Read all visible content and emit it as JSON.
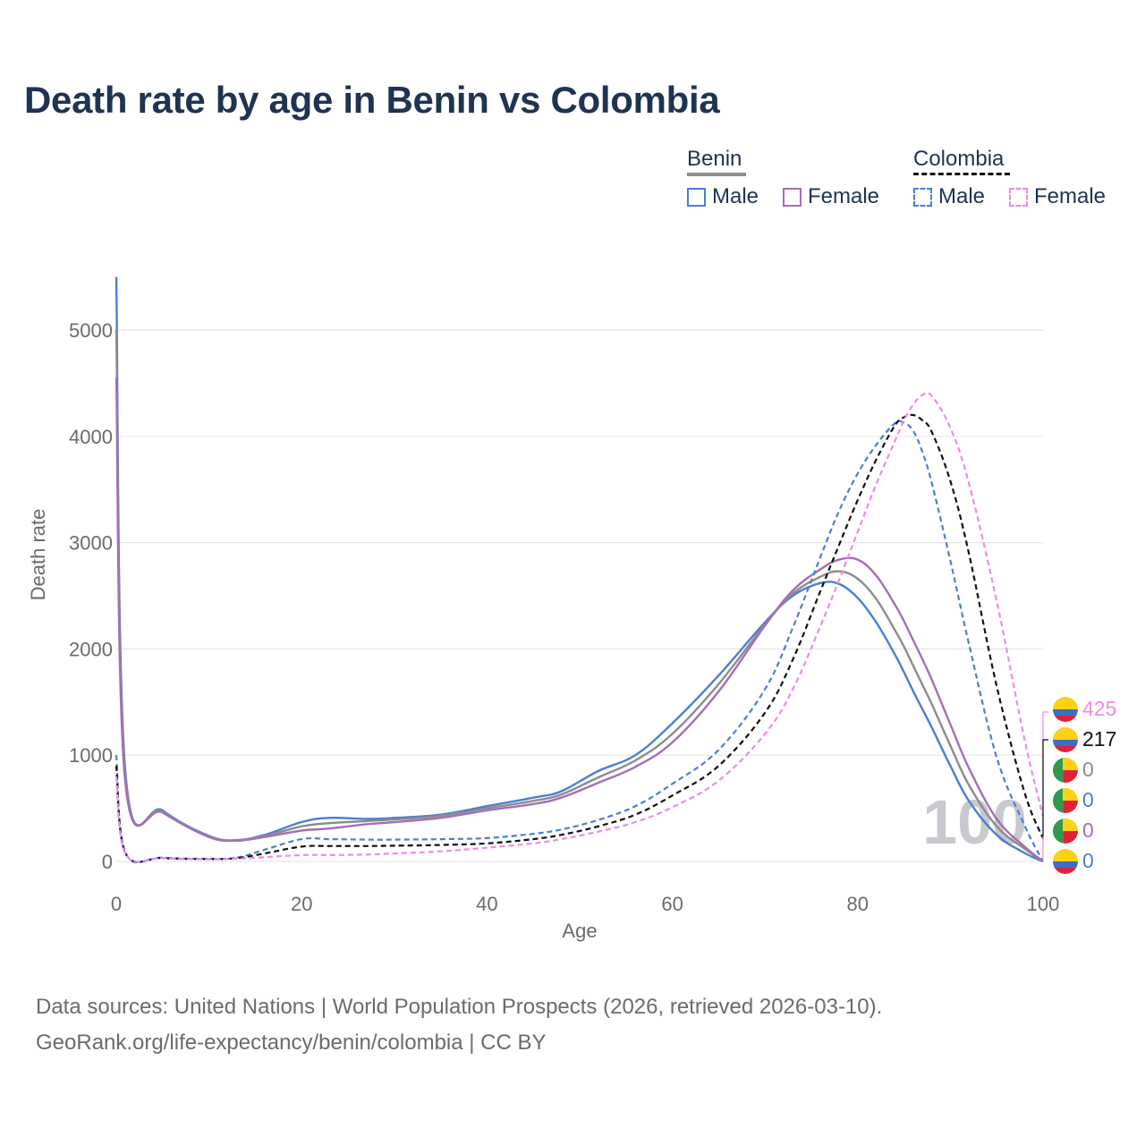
{
  "title": "Death rate by age in Benin vs Colombia",
  "legend": {
    "groups": [
      {
        "name": "Benin",
        "line_style": "solid",
        "line_color": "#8c8c8c",
        "items": [
          {
            "label": "Male",
            "color": "#4a7fd4"
          },
          {
            "label": "Female",
            "color": "#a46fb4"
          }
        ]
      },
      {
        "name": "Colombia",
        "line_style": "dashed",
        "line_color": "#111111",
        "items": [
          {
            "label": "Male",
            "color": "#4a7fd4"
          },
          {
            "label": "Female",
            "color": "#f08ae6"
          }
        ]
      }
    ]
  },
  "source_line1": "Data sources: United Nations | World Population Prospects (2026, retrieved 2026-03-10).",
  "source_line2": "GeoRank.org/life-expectancy/benin/colombia | CC BY",
  "chart_data": {
    "type": "line",
    "title": "Death rate by age in Benin vs Colombia",
    "xlabel": "Age",
    "ylabel": "Death rate",
    "xlim": [
      0,
      100
    ],
    "ylim": [
      0,
      5500
    ],
    "x_ticks": [
      0,
      20,
      40,
      60,
      80,
      100
    ],
    "y_ticks": [
      0,
      1000,
      2000,
      3000,
      4000,
      5000
    ],
    "grid": true,
    "watermark": "100",
    "x": [
      0,
      1,
      5,
      10,
      13,
      16,
      20,
      23,
      27,
      30,
      35,
      40,
      45,
      48,
      52,
      56,
      60,
      65,
      70,
      73,
      76,
      78,
      80,
      82,
      84,
      85,
      86,
      87,
      88,
      90,
      92,
      95,
      98,
      100
    ],
    "series": [
      {
        "name": "Benin Male",
        "country": "Benin",
        "sex": "Male",
        "color": "#4a7fd4",
        "dash": "solid",
        "values": [
          5500,
          820,
          480,
          240,
          200,
          250,
          370,
          410,
          400,
          410,
          440,
          520,
          600,
          660,
          850,
          1000,
          1300,
          1750,
          2250,
          2500,
          2620,
          2610,
          2480,
          2250,
          1950,
          1780,
          1600,
          1430,
          1260,
          900,
          570,
          250,
          80,
          0
        ]
      },
      {
        "name": "Benin Both",
        "country": "Benin",
        "sex": "Both",
        "color": "#8c8c8c",
        "dash": "solid",
        "values": [
          5000,
          770,
          470,
          235,
          198,
          240,
          330,
          360,
          380,
          395,
          430,
          500,
          570,
          630,
          790,
          950,
          1200,
          1670,
          2230,
          2520,
          2680,
          2730,
          2660,
          2470,
          2180,
          2020,
          1840,
          1660,
          1480,
          1090,
          720,
          330,
          120,
          0
        ]
      },
      {
        "name": "Benin Female",
        "country": "Benin",
        "sex": "Female",
        "color": "#a46fb4",
        "dash": "solid",
        "values": [
          4550,
          720,
          460,
          230,
          195,
          230,
          290,
          310,
          350,
          370,
          410,
          480,
          540,
          600,
          740,
          890,
          1120,
          1600,
          2220,
          2550,
          2750,
          2840,
          2840,
          2690,
          2420,
          2260,
          2080,
          1900,
          1710,
          1290,
          880,
          400,
          140,
          0
        ]
      },
      {
        "name": "Colombia Male",
        "country": "Colombia",
        "sex": "Male",
        "color": "#4a7fd4",
        "dash": "dashed",
        "values": [
          1000,
          80,
          35,
          25,
          35,
          110,
          210,
          210,
          205,
          205,
          210,
          220,
          260,
          300,
          390,
          520,
          730,
          1050,
          1620,
          2200,
          2870,
          3300,
          3650,
          3920,
          4120,
          4130,
          4050,
          3850,
          3560,
          2830,
          2050,
          980,
          340,
          0
        ]
      },
      {
        "name": "Colombia Both",
        "country": "Colombia",
        "sex": "Both",
        "color": "#111111",
        "dash": "dashed",
        "values": [
          900,
          75,
          32,
          22,
          30,
          75,
          140,
          145,
          145,
          148,
          155,
          170,
          210,
          250,
          330,
          440,
          620,
          900,
          1400,
          1900,
          2550,
          2980,
          3400,
          3780,
          4100,
          4180,
          4200,
          4150,
          4040,
          3580,
          2900,
          1650,
          650,
          217
        ]
      },
      {
        "name": "Colombia Female",
        "country": "Colombia",
        "sex": "Female",
        "color": "#f08ae6",
        "dash": "dashed",
        "values": [
          800,
          70,
          30,
          20,
          25,
          40,
          60,
          60,
          65,
          75,
          95,
          130,
          170,
          210,
          280,
          370,
          510,
          760,
          1200,
          1620,
          2220,
          2650,
          3100,
          3550,
          3950,
          4150,
          4300,
          4390,
          4380,
          4080,
          3560,
          2450,
          1150,
          425
        ]
      }
    ],
    "end_labels": [
      {
        "value": "425",
        "color": "#f08ae6",
        "flag": "colombia"
      },
      {
        "value": "217",
        "color": "#111111",
        "flag": "colombia"
      },
      {
        "value": "0",
        "color": "#8c8c8c",
        "flag": "benin"
      },
      {
        "value": "0",
        "color": "#4a7fd4",
        "flag": "benin"
      },
      {
        "value": "0",
        "color": "#a46fb4",
        "flag": "benin"
      },
      {
        "value": "0",
        "color": "#4a7fd4",
        "flag": "colombia"
      }
    ]
  }
}
